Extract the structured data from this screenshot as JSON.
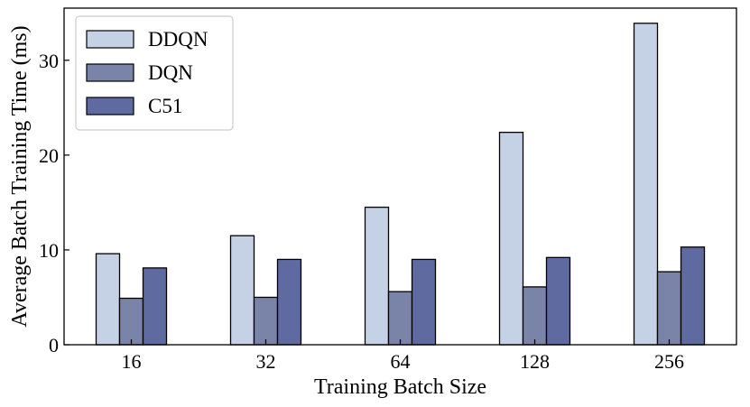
{
  "chart_data": {
    "type": "bar",
    "title": "",
    "xlabel": "Training Batch Size",
    "ylabel": "Average Batch Training Time (ms)",
    "categories": [
      "16",
      "32",
      "64",
      "128",
      "256"
    ],
    "series": [
      {
        "name": "DDQN",
        "values": [
          9.6,
          11.5,
          14.5,
          22.4,
          33.9
        ],
        "color": "#c5d2e5"
      },
      {
        "name": "DQN",
        "values": [
          4.9,
          5.0,
          5.6,
          6.1,
          7.7
        ],
        "color": "#7a84a8"
      },
      {
        "name": "C51",
        "values": [
          8.1,
          9.0,
          9.0,
          9.2,
          10.3
        ],
        "color": "#5f6aa0"
      }
    ],
    "ylim": [
      0,
      35.5
    ],
    "yticks": [
      "0",
      "10",
      "20",
      "30"
    ],
    "legend": "top-left",
    "grid": false
  }
}
